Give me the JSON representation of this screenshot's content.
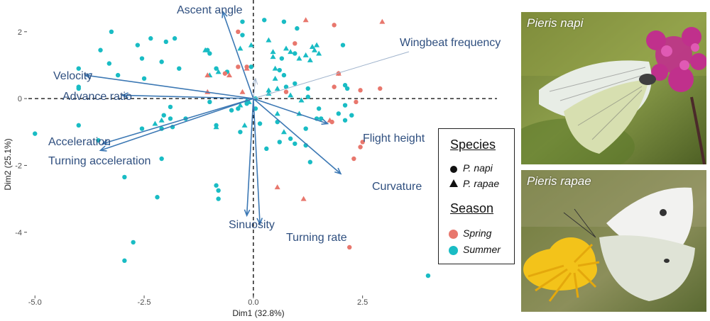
{
  "chart_data": {
    "type": "scatter",
    "subtype": "pca-biplot",
    "xlabel": "Dim1 (32.8%)",
    "ylabel": "Dim2 (25.1%)",
    "xlim": [
      -5.15,
      6.0
    ],
    "ylim": [
      -5.85,
      2.95
    ],
    "xticks": [
      -5.0,
      -2.5,
      0.0,
      2.5
    ],
    "xtick_labels": [
      "-5.0",
      "-2.5",
      "0.0",
      "2.5"
    ],
    "yticks": [
      -4,
      -2,
      0,
      2
    ],
    "ytick_labels": [
      "-4",
      "-2",
      "0",
      "2"
    ],
    "reference_lines": {
      "x": 0,
      "y": 0,
      "style": "dashed"
    },
    "arrows": [
      {
        "name": "Ascent angle",
        "x": -0.7,
        "y": 2.6
      },
      {
        "name": "Wingbeat frequency",
        "x": 0.05,
        "y": 0.6
      },
      {
        "name": "Velocity",
        "x": -3.85,
        "y": 0.7
      },
      {
        "name": "Advance ratio",
        "x": -3.0,
        "y": 0.1
      },
      {
        "name": "Acceleration",
        "x": -3.45,
        "y": -1.35
      },
      {
        "name": "Turning acceleration",
        "x": -3.5,
        "y": -1.55
      },
      {
        "name": "Flight height",
        "x": 1.7,
        "y": -0.75
      },
      {
        "name": "Curvature",
        "x": 2.0,
        "y": -2.25
      },
      {
        "name": "Sinuosity",
        "x": -0.15,
        "y": -3.5
      },
      {
        "name": "Turning rate",
        "x": 0.15,
        "y": -3.75
      }
    ],
    "series": [
      {
        "species": "P. napi",
        "season": "Summer",
        "marker": "circle",
        "points": [
          [
            -3.25,
            2.0
          ],
          [
            -2.65,
            1.6
          ],
          [
            -2.0,
            1.7
          ],
          [
            -3.3,
            1.05
          ],
          [
            -2.35,
            1.8
          ],
          [
            -1.8,
            1.8
          ],
          [
            -3.5,
            1.45
          ],
          [
            -2.55,
            1.2
          ],
          [
            -2.1,
            1.1
          ],
          [
            -2.5,
            0.6
          ],
          [
            -3.1,
            0.7
          ],
          [
            -1.7,
            0.9
          ],
          [
            -4.0,
            0.35
          ],
          [
            -4.0,
            0.9
          ],
          [
            -4.0,
            0.3
          ],
          [
            -1.0,
            1.35
          ],
          [
            -1.05,
            1.45
          ],
          [
            -0.85,
            0.9
          ],
          [
            -0.6,
            0.8
          ],
          [
            -0.25,
            1.9
          ],
          [
            -0.05,
            0.95
          ],
          [
            0.25,
            2.35
          ],
          [
            -0.25,
            2.3
          ],
          [
            -1.0,
            -0.1
          ],
          [
            -0.35,
            -0.3
          ],
          [
            -0.5,
            -0.35
          ],
          [
            -0.85,
            -0.8
          ],
          [
            -1.9,
            -0.25
          ],
          [
            -1.9,
            -0.6
          ],
          [
            -1.55,
            -0.6
          ],
          [
            -2.55,
            -0.9
          ],
          [
            -2.1,
            -0.9
          ],
          [
            -1.85,
            -0.85
          ],
          [
            -2.05,
            -0.5
          ],
          [
            -2.1,
            -1.8
          ],
          [
            -3.55,
            -1.25
          ],
          [
            -4.0,
            -0.8
          ],
          [
            -5.0,
            -1.05
          ],
          [
            -0.85,
            -2.6
          ],
          [
            -0.8,
            -2.75
          ],
          [
            -0.8,
            -3.0
          ],
          [
            -0.3,
            -1.0
          ],
          [
            -0.15,
            -0.15
          ],
          [
            0.05,
            0.0
          ],
          [
            0.05,
            -0.3
          ],
          [
            0.15,
            -0.75
          ],
          [
            0.3,
            -1.5
          ],
          [
            0.55,
            -0.7
          ],
          [
            0.6,
            0.85
          ],
          [
            0.7,
            2.3
          ],
          [
            0.75,
            0.35
          ],
          [
            0.95,
            0.45
          ],
          [
            1.25,
            0.3
          ],
          [
            1.25,
            0.05
          ],
          [
            1.45,
            -0.6
          ],
          [
            1.5,
            -0.3
          ],
          [
            1.55,
            -0.6
          ],
          [
            1.95,
            -0.45
          ],
          [
            2.1,
            0.4
          ],
          [
            2.1,
            -0.2
          ],
          [
            2.25,
            -0.5
          ],
          [
            2.1,
            -0.65
          ],
          [
            0.6,
            -1.3
          ],
          [
            0.85,
            -1.2
          ],
          [
            0.95,
            -1.35
          ],
          [
            1.2,
            -0.9
          ],
          [
            1.2,
            -1.4
          ],
          [
            1.3,
            -1.9
          ],
          [
            2.05,
            1.6
          ],
          [
            2.15,
            0.3
          ],
          [
            -2.95,
            -2.35
          ],
          [
            -2.2,
            -2.95
          ],
          [
            -2.75,
            -4.3
          ],
          [
            -2.95,
            -4.85
          ],
          [
            4.0,
            -5.3
          ],
          [
            1.0,
            2.1
          ],
          [
            0.95,
            1.35
          ],
          [
            0.65,
            1.2
          ],
          [
            0.7,
            0.7
          ]
        ]
      },
      {
        "species": "P. rapae",
        "season": "Summer",
        "marker": "triangle",
        "points": [
          [
            -1.1,
            1.45
          ],
          [
            -0.8,
            0.8
          ],
          [
            -1.0,
            0.7
          ],
          [
            -0.3,
            1.5
          ],
          [
            -0.05,
            1.6
          ],
          [
            0.35,
            1.75
          ],
          [
            0.45,
            1.4
          ],
          [
            0.45,
            1.25
          ],
          [
            0.5,
            0.9
          ],
          [
            0.75,
            1.5
          ],
          [
            0.85,
            1.4
          ],
          [
            1.05,
            1.2
          ],
          [
            1.2,
            1.3
          ],
          [
            1.35,
            1.55
          ],
          [
            1.4,
            1.45
          ],
          [
            1.5,
            1.35
          ],
          [
            1.45,
            1.6
          ],
          [
            1.3,
            1.15
          ],
          [
            0.5,
            0.6
          ],
          [
            0.55,
            0.3
          ],
          [
            0.35,
            0.15
          ],
          [
            0.55,
            -0.45
          ],
          [
            0.85,
            0.1
          ],
          [
            1.1,
            -0.05
          ],
          [
            0.7,
            -1.0
          ],
          [
            -0.3,
            -0.2
          ],
          [
            -0.1,
            -0.1
          ],
          [
            -0.15,
            -0.05
          ],
          [
            -0.2,
            -0.8
          ],
          [
            -2.1,
            -0.65
          ],
          [
            -2.25,
            -0.75
          ],
          [
            0.35,
            0.25
          ],
          [
            1.05,
            -0.45
          ],
          [
            -0.85,
            -0.85
          ]
        ]
      },
      {
        "species": "P. napi",
        "season": "Spring",
        "marker": "circle",
        "points": [
          [
            1.95,
            0.75
          ],
          [
            2.45,
            0.25
          ],
          [
            2.9,
            0.3
          ],
          [
            1.85,
            0.35
          ],
          [
            2.35,
            -0.1
          ],
          [
            2.5,
            -1.3
          ],
          [
            2.45,
            -1.45
          ],
          [
            2.3,
            -1.8
          ],
          [
            1.8,
            -0.7
          ],
          [
            2.2,
            -4.45
          ],
          [
            1.85,
            2.2
          ],
          [
            0.95,
            1.65
          ],
          [
            -0.15,
            0.95
          ],
          [
            -0.65,
            0.75
          ],
          [
            -0.35,
            2.0
          ],
          [
            -0.35,
            0.95
          ],
          [
            0.75,
            0.2
          ]
        ]
      },
      {
        "species": "P. rapae",
        "season": "Spring",
        "marker": "triangle",
        "points": [
          [
            2.95,
            2.3
          ],
          [
            1.95,
            0.75
          ],
          [
            1.75,
            -0.65
          ],
          [
            1.15,
            -3.0
          ],
          [
            0.55,
            -2.65
          ],
          [
            -1.05,
            0.7
          ],
          [
            -1.05,
            0.2
          ],
          [
            -0.15,
            0.9
          ],
          [
            -0.25,
            0.2
          ],
          [
            1.2,
            2.35
          ],
          [
            -0.55,
            0.7
          ]
        ]
      }
    ],
    "legend": {
      "placement": "right",
      "species_title": "Species",
      "species_entries": [
        "P. napi",
        "P. rapae"
      ],
      "season_title": "Season",
      "season_entries": [
        "Spring",
        "Summer"
      ]
    },
    "colors": {
      "spring": "#e8776d",
      "summer": "#19bcc4",
      "arrow": "#3c78b4",
      "arrow_label": "#2f4f7f",
      "wingbeat_arrow": "#9fb3cc"
    }
  },
  "photos": [
    {
      "label": "Pieris napi",
      "image": "butterfly-on-pink-flower"
    },
    {
      "label": "Pieris rapae",
      "image": "butterfly-on-yellow-flower"
    }
  ]
}
